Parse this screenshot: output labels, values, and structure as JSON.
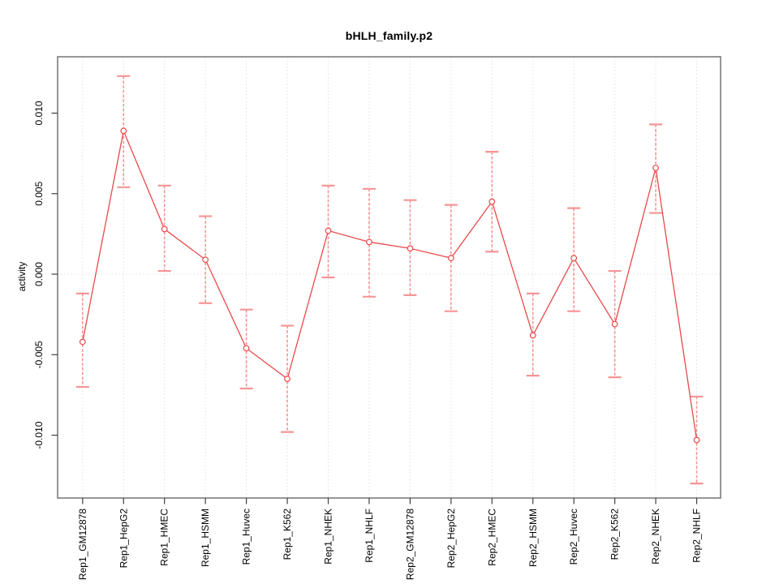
{
  "window": {
    "background": "#ffffff"
  },
  "chart_data": {
    "type": "line",
    "title": "bHLH_family.p2",
    "xlabel": "",
    "ylabel": "activity",
    "categories": [
      "Rep1_GM12878",
      "Rep1_HepG2",
      "Rep1_HMEC",
      "Rep1_HSMM",
      "Rep1_Huvec",
      "Rep1_K562",
      "Rep1_NHEK",
      "Rep1_NHLF",
      "Rep2_GM12878",
      "Rep2_HepG2",
      "Rep2_HMEC",
      "Rep2_HSMM",
      "Rep2_Huvec",
      "Rep2_K562",
      "Rep2_NHEK",
      "Rep2_NHLF"
    ],
    "values": [
      -0.0042,
      0.0089,
      0.0028,
      0.0009,
      -0.0046,
      -0.0065,
      0.0027,
      0.002,
      0.0016,
      0.001,
      0.0045,
      -0.0038,
      0.001,
      -0.0031,
      0.0066,
      -0.0103
    ],
    "error_low": [
      -0.007,
      0.0054,
      0.0002,
      -0.0018,
      -0.0071,
      -0.0098,
      -0.0002,
      -0.0014,
      -0.0013,
      -0.0023,
      0.0014,
      -0.0063,
      -0.0023,
      -0.0064,
      0.0038,
      -0.013
    ],
    "error_high": [
      -0.0012,
      0.0123,
      0.0055,
      0.0036,
      -0.0022,
      -0.0032,
      0.0055,
      0.0053,
      0.0046,
      0.0043,
      0.0076,
      -0.0012,
      0.0041,
      0.0002,
      0.0093,
      -0.0076
    ],
    "ylim": [
      -0.0139,
      0.0135
    ],
    "ytick_values": [
      -0.01,
      -0.005,
      0.0,
      0.005,
      0.01
    ],
    "ytick_labels": [
      "-0.010",
      "-0.005",
      "0.000",
      "0.005",
      "0.010"
    ],
    "legend": "none",
    "marker": "open-circle",
    "grid": {
      "vertical_gridlines": "dotted line at every category",
      "horizontal_zero_line": "dotted line at y = 0"
    },
    "colors": {
      "series": "#e9494a",
      "error_bar": "#f59595",
      "grid": "#d9d9d9",
      "frame": "#8a8a8a",
      "tick": "#404040",
      "text": "#000000"
    }
  }
}
